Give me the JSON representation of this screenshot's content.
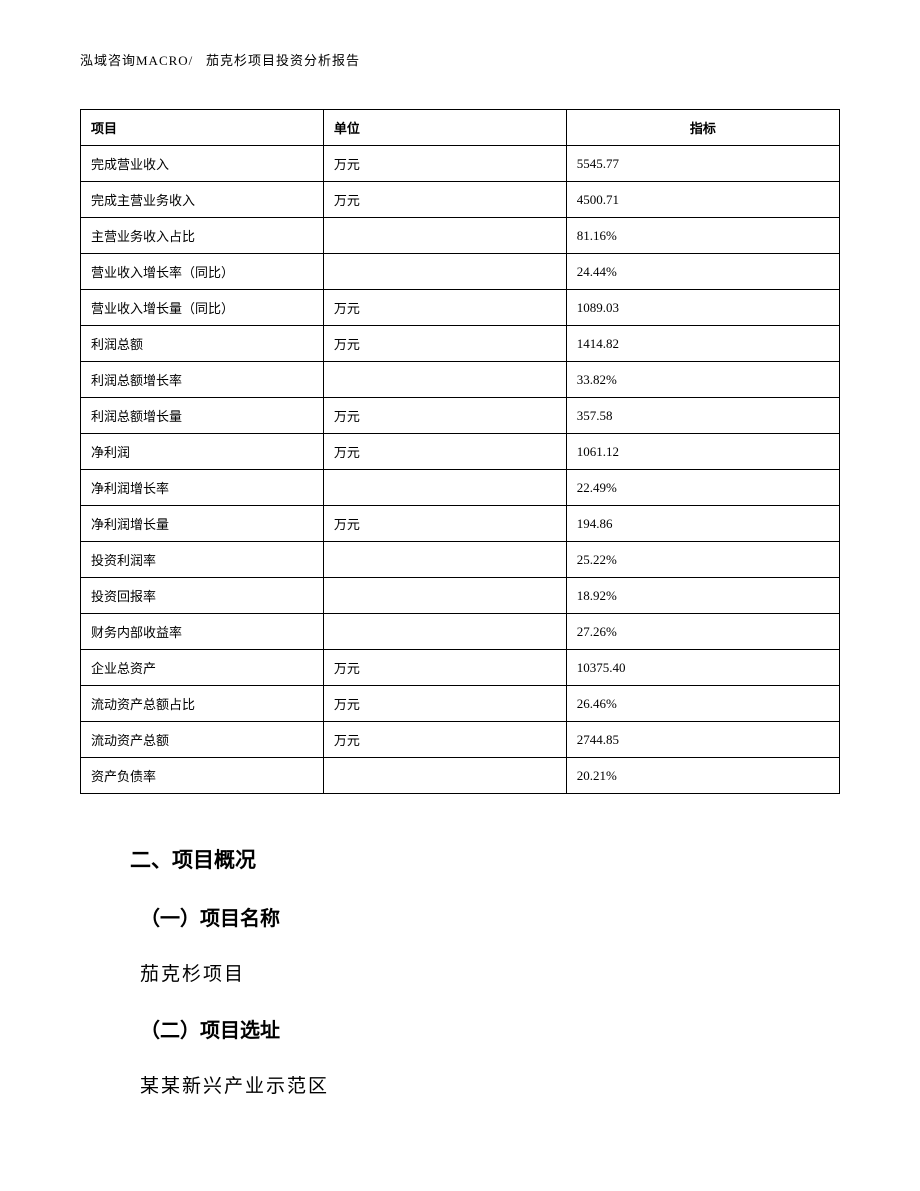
{
  "header": {
    "left": "泓域咨询MACRO/",
    "right": "茄克杉项目投资分析报告"
  },
  "table": {
    "columns": [
      "项目",
      "单位",
      "指标"
    ],
    "rows": [
      [
        "完成营业收入",
        "万元",
        "5545.77"
      ],
      [
        "完成主营业务收入",
        "万元",
        "4500.71"
      ],
      [
        "主营业务收入占比",
        "",
        "81.16%"
      ],
      [
        "营业收入增长率（同比）",
        "",
        "24.44%"
      ],
      [
        "营业收入增长量（同比）",
        "万元",
        "1089.03"
      ],
      [
        "利润总额",
        "万元",
        "1414.82"
      ],
      [
        "利润总额增长率",
        "",
        "33.82%"
      ],
      [
        "利润总额增长量",
        "万元",
        "357.58"
      ],
      [
        "净利润",
        "万元",
        "1061.12"
      ],
      [
        "净利润增长率",
        "",
        "22.49%"
      ],
      [
        "净利润增长量",
        "万元",
        "194.86"
      ],
      [
        "投资利润率",
        "",
        "25.22%"
      ],
      [
        "投资回报率",
        "",
        "18.92%"
      ],
      [
        "财务内部收益率",
        "",
        "27.26%"
      ],
      [
        "企业总资产",
        "万元",
        "10375.40"
      ],
      [
        "流动资产总额占比",
        "万元",
        "26.46%"
      ],
      [
        "流动资产总额",
        "万元",
        "2744.85"
      ],
      [
        "资产负债率",
        "",
        "20.21%"
      ]
    ]
  },
  "sections": {
    "heading": "二、项目概况",
    "sub1_title": "（一）项目名称",
    "sub1_text": "茄克杉项目",
    "sub2_title": "（二）项目选址",
    "sub2_text": "某某新兴产业示范区"
  }
}
